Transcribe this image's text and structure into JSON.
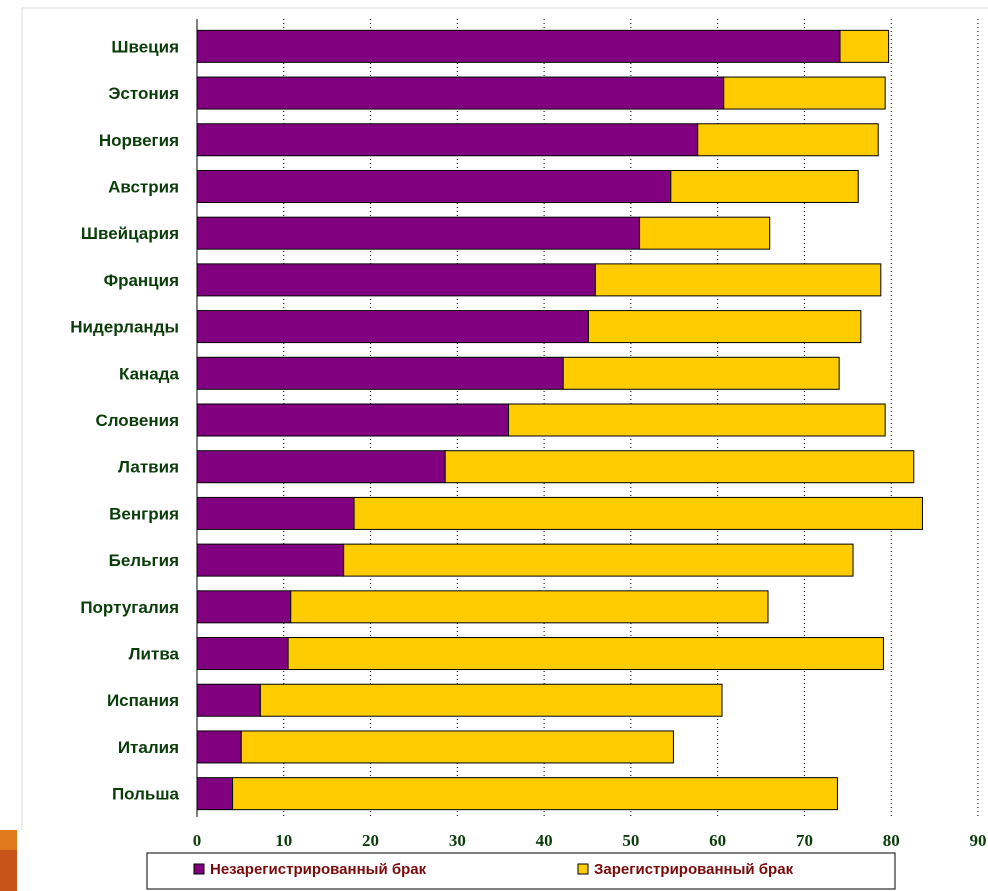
{
  "chart_data": {
    "type": "bar",
    "orientation": "horizontal",
    "stacked": true,
    "categories": [
      "Швеция",
      "Эстония",
      "Норвегия",
      "Австрия",
      "Швейцария",
      "Франция",
      "Нидерланды",
      "Канада",
      "Словения",
      "Латвия",
      "Венгрия",
      "Бельгия",
      "Португалия",
      "Литва",
      "Испания",
      "Италия",
      "Польша"
    ],
    "series": [
      {
        "name": "Незарегистрированный брак",
        "color": "#800080",
        "values": [
          74.1,
          60.7,
          57.7,
          54.6,
          51.0,
          45.9,
          45.1,
          42.2,
          35.9,
          28.6,
          18.1,
          16.9,
          10.8,
          10.5,
          7.3,
          5.1,
          4.1
        ]
      },
      {
        "name": "Зарегистрированный брак",
        "color": "#FFCC00",
        "values": [
          5.6,
          18.6,
          20.8,
          21.6,
          15.0,
          32.9,
          31.4,
          31.8,
          43.4,
          54.0,
          65.5,
          58.7,
          55.0,
          68.6,
          53.2,
          49.8,
          69.7
        ]
      }
    ],
    "xlim": [
      0,
      90
    ],
    "xticks": [
      "0",
      "10",
      "20",
      "30",
      "40",
      "50",
      "60",
      "70",
      "80",
      "90"
    ],
    "grid": "vertical dotted",
    "legend_position": "bottom"
  },
  "colors": {
    "accent": "#E07A1F",
    "accent_dark": "#C8541A",
    "label": "#0b3d0b",
    "legend_text": "#7a0a0a"
  }
}
